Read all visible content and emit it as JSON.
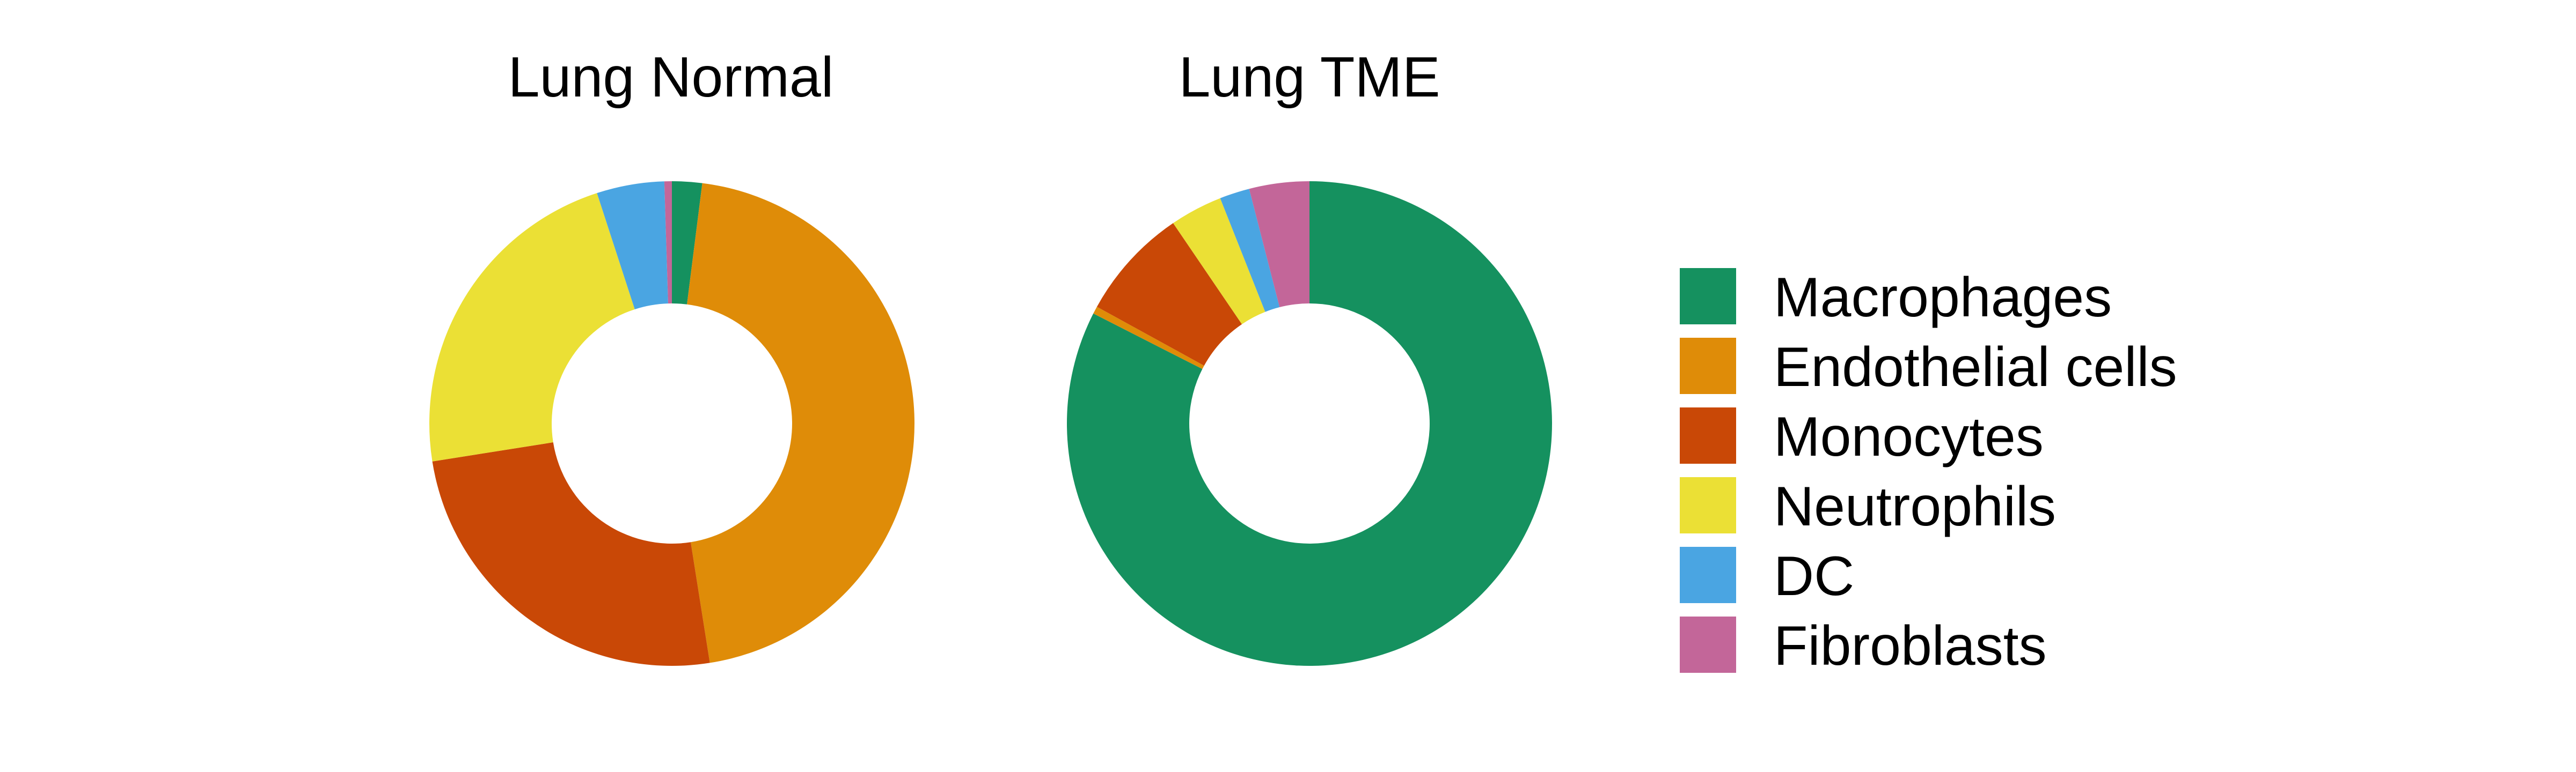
{
  "chart_data": [
    {
      "type": "pie",
      "title": "Lung Normal",
      "categories": [
        "Macrophages",
        "Endothelial cells",
        "Monocytes",
        "Neutrophils",
        "DC",
        "Fibroblasts"
      ],
      "values": [
        2.0,
        45.5,
        25.0,
        22.5,
        4.5,
        0.5
      ],
      "unit": "%",
      "donut": true
    },
    {
      "type": "pie",
      "title": "Lung TME",
      "categories": [
        "Macrophages",
        "Endothelial cells",
        "Monocytes",
        "Neutrophils",
        "DC",
        "Fibroblasts"
      ],
      "values": [
        82.5,
        0.5,
        7.5,
        3.5,
        2.0,
        4.0
      ],
      "unit": "%",
      "donut": true
    }
  ],
  "legend": {
    "position": "right",
    "items": [
      {
        "label": "Macrophages",
        "color": "#15915F"
      },
      {
        "label": "Endothelial cells",
        "color": "#DF8C08"
      },
      {
        "label": "Monocytes",
        "color": "#C94806"
      },
      {
        "label": "Neutrophils",
        "color": "#EBE035"
      },
      {
        "label": "DC",
        "color": "#4AA5E2"
      },
      {
        "label": "Fibroblasts",
        "color": "#C36699"
      }
    ]
  }
}
